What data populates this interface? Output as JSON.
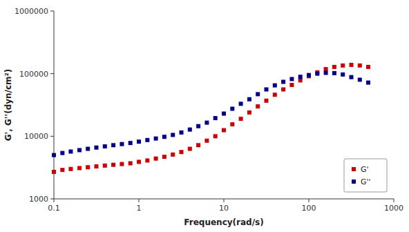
{
  "chart_data": {
    "type": "scatter",
    "xlabel": "Frequency(rad/s)",
    "ylabel": "G', G''(dyn/cm²)",
    "log": true,
    "grid": false,
    "legend": "lower right",
    "xlim": [
      0.1,
      1000
    ],
    "ylim": [
      1000,
      1000000
    ],
    "xticks": [
      0.1,
      1,
      10,
      100,
      1000
    ],
    "yticks": [
      1000,
      10000,
      100000,
      1000000
    ],
    "x": [
      0.1,
      0.126,
      0.158,
      0.2,
      0.251,
      0.316,
      0.398,
      0.501,
      0.631,
      0.794,
      1.0,
      1.259,
      1.585,
      1.995,
      2.512,
      3.162,
      3.981,
      5.012,
      6.31,
      7.943,
      10.0,
      12.59,
      15.85,
      19.95,
      25.12,
      31.62,
      39.81,
      50.12,
      63.1,
      79.43,
      100.0,
      125.9,
      158.5,
      199.5,
      251.2,
      316.2,
      398.1,
      500.0
    ],
    "series": [
      {
        "name": "G'",
        "color": "#cc0000",
        "marker": "square",
        "values": [
          2700,
          2900,
          3000,
          3100,
          3200,
          3300,
          3400,
          3500,
          3600,
          3700,
          3900,
          4100,
          4400,
          4700,
          5100,
          5600,
          6300,
          7200,
          8500,
          10000,
          12500,
          15500,
          19000,
          24000,
          30000,
          37000,
          46000,
          56000,
          66000,
          78000,
          91000,
          105000,
          118000,
          128000,
          135000,
          138000,
          135000,
          128000
        ]
      },
      {
        "name": "G''",
        "color": "#00008b",
        "marker": "square",
        "values": [
          5000,
          5400,
          5700,
          6000,
          6300,
          6600,
          6900,
          7200,
          7500,
          7800,
          8200,
          8700,
          9200,
          9800,
          10500,
          11500,
          12800,
          14500,
          16500,
          19500,
          23000,
          27500,
          33000,
          39000,
          47000,
          56000,
          65000,
          74000,
          82000,
          89000,
          95000,
          100000,
          103000,
          102000,
          97000,
          88000,
          80000,
          72000
        ]
      }
    ]
  }
}
